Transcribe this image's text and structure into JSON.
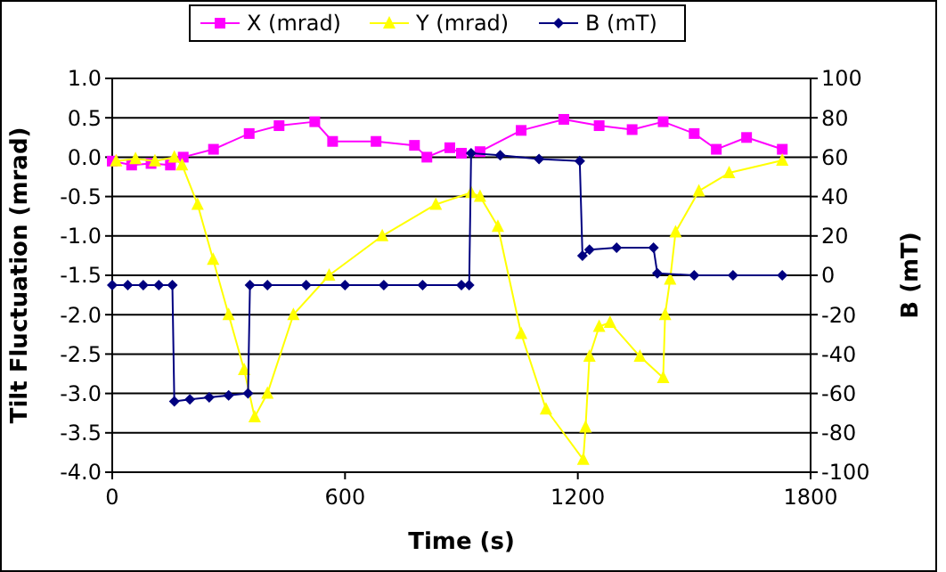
{
  "chart_data": {
    "type": "line",
    "xlabel": "Time (s)",
    "ylabel": "Tilt Fluctuation (mrad)",
    "y2label": "B (mT)",
    "xlim": [
      0,
      1800
    ],
    "xticks": [
      0,
      600,
      1200,
      1800
    ],
    "ylim": [
      -4,
      1
    ],
    "yticks": [
      {
        "value": -4,
        "label": "-4.0"
      },
      {
        "value": -3.5,
        "label": "-3.5"
      },
      {
        "value": -3,
        "label": "-3.0"
      },
      {
        "value": -2.5,
        "label": "-2.5"
      },
      {
        "value": -2,
        "label": "-2.0"
      },
      {
        "value": -1.5,
        "label": "-1.5"
      },
      {
        "value": -1,
        "label": "-1.0"
      },
      {
        "value": -0.5,
        "label": "-0.5"
      },
      {
        "value": 0,
        "label": "0.0"
      },
      {
        "value": 0.5,
        "label": "0.5"
      },
      {
        "value": 1,
        "label": "1.0"
      }
    ],
    "y2lim": [
      -100,
      100
    ],
    "y2ticks": [
      -100,
      -80,
      -60,
      -40,
      -20,
      0,
      20,
      40,
      60,
      80,
      100
    ],
    "grid": "y",
    "legend": "top",
    "series": [
      {
        "name": "X (mrad)",
        "color": "#ff00ff",
        "marker": "square",
        "x": [
          0,
          50,
          100,
          150,
          183,
          261,
          353,
          430,
          522,
          568,
          680,
          779,
          811,
          870,
          900,
          948,
          1054,
          1164,
          1255,
          1340,
          1420,
          1500,
          1557,
          1635,
          1727
        ],
        "values": [
          -0.05,
          -0.1,
          -0.08,
          -0.1,
          0,
          0.1,
          0.3,
          0.4,
          0.45,
          0.2,
          0.2,
          0.15,
          0,
          0.12,
          0.05,
          0.07,
          0.34,
          0.48,
          0.4,
          0.35,
          0.45,
          0.3,
          0.1,
          0.25,
          0.1
        ]
      },
      {
        "name": "Y (mrad)",
        "color": "#ffff00",
        "marker": "triangle",
        "x": [
          10,
          60,
          110,
          160,
          180,
          220,
          260,
          300,
          340,
          367,
          400,
          467,
          559,
          696,
          834,
          925,
          948,
          994,
          1054,
          1118,
          1214,
          1220,
          1230,
          1255,
          1283,
          1360,
          1420,
          1425,
          1438,
          1452,
          1512,
          1590,
          1727
        ],
        "values": [
          -0.05,
          -0.02,
          -0.05,
          0,
          -0.1,
          -0.6,
          -1.3,
          -2,
          -2.7,
          -3.3,
          -3,
          -2,
          -1.5,
          -1,
          -0.6,
          -0.45,
          -0.5,
          -0.88,
          -2.24,
          -3.2,
          -3.84,
          -3.43,
          -2.53,
          -2.15,
          -2.1,
          -2.53,
          -2.8,
          -2,
          -1.55,
          -0.95,
          -0.43,
          -0.2,
          -0.04
        ]
      },
      {
        "name": "B (mT)",
        "color": "#000080",
        "marker": "diamond",
        "axis": "y2",
        "x": [
          0,
          40,
          80,
          120,
          155,
          160,
          200,
          250,
          300,
          350,
          355,
          400,
          500,
          600,
          700,
          800,
          900,
          920,
          925,
          1000,
          1100,
          1205,
          1212,
          1230,
          1300,
          1395,
          1405,
          1500,
          1600,
          1727
        ],
        "values": [
          -5,
          -5,
          -5,
          -5,
          -5,
          -64,
          -63,
          -62,
          -61,
          -60,
          -5,
          -5,
          -5,
          -5,
          -5,
          -5,
          -5,
          -5,
          62,
          61,
          59,
          58,
          10,
          13,
          14,
          14,
          1,
          0,
          0,
          0
        ]
      }
    ]
  }
}
